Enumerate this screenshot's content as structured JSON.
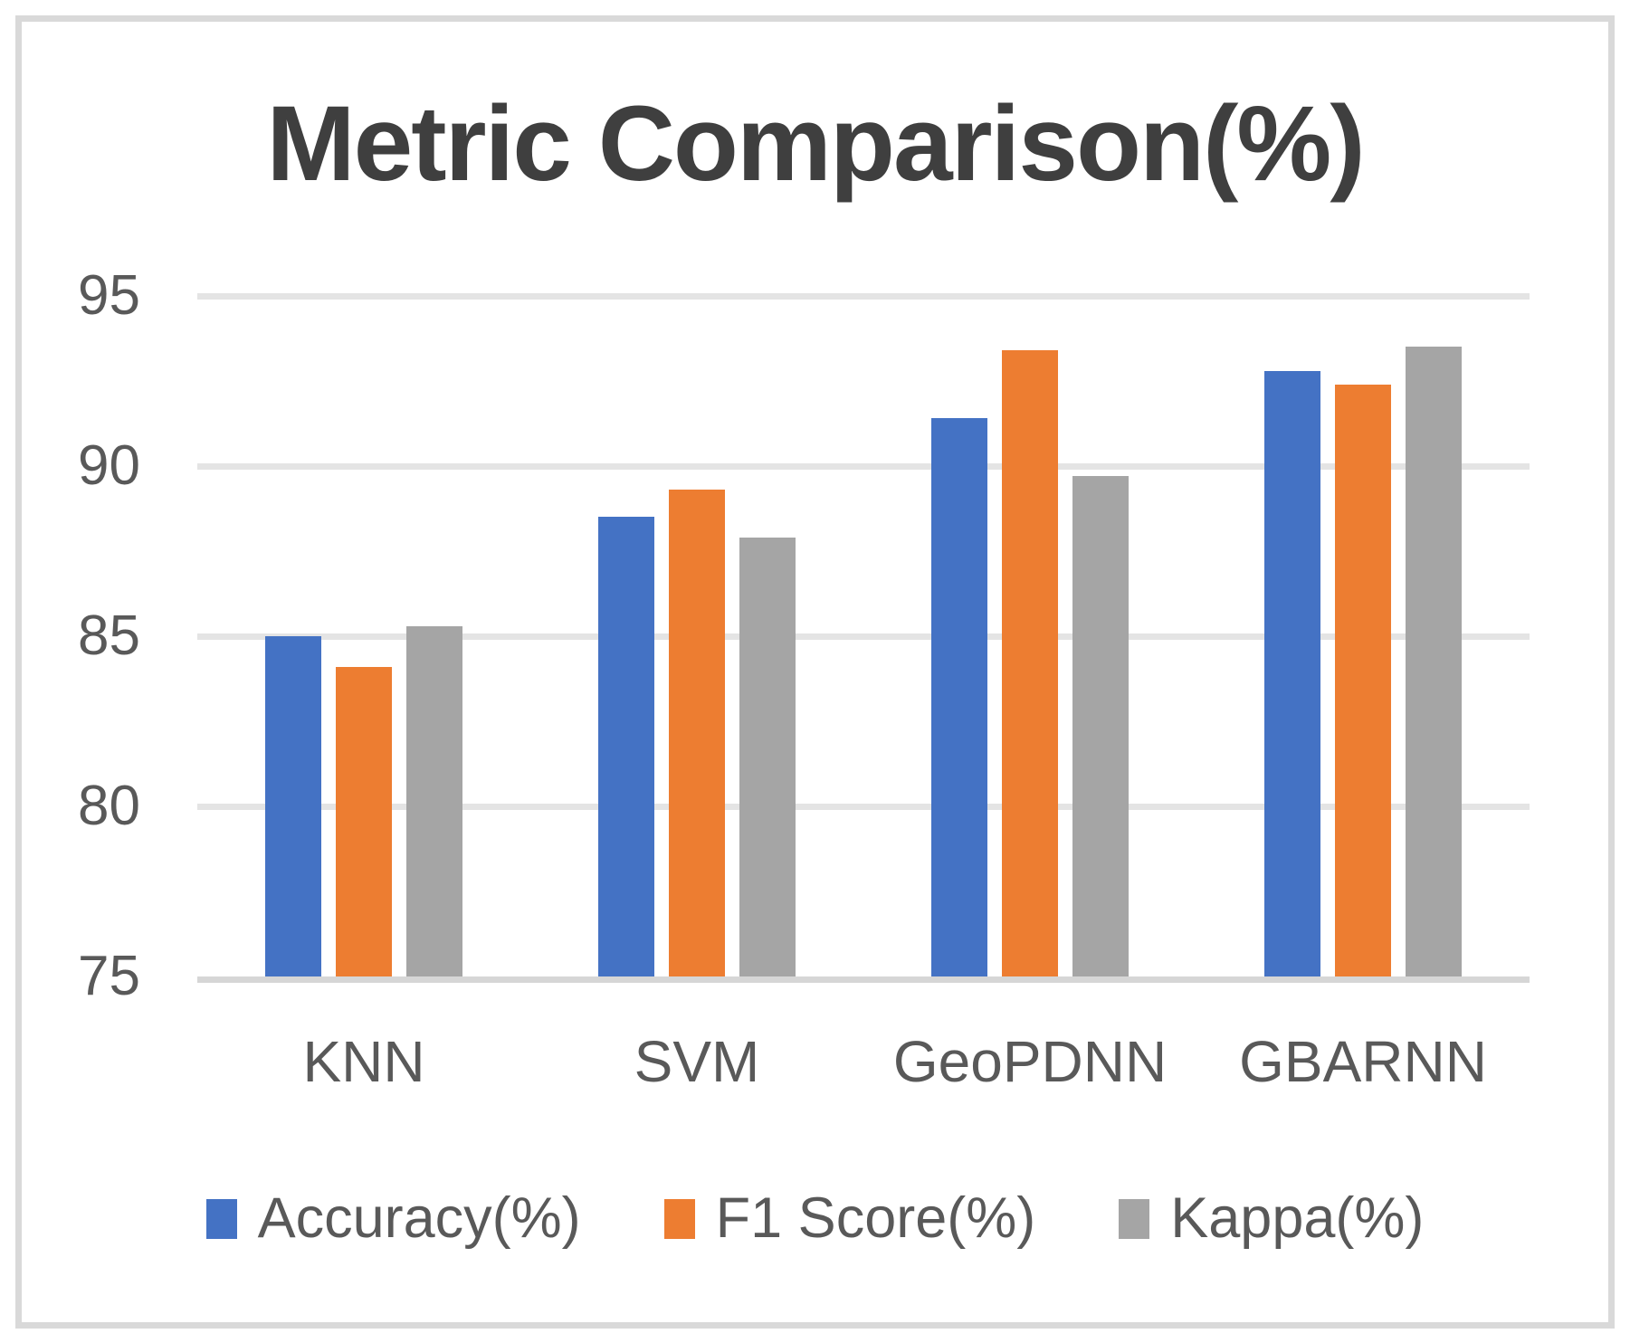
{
  "chart_data": {
    "type": "bar",
    "title": "Metric Comparison(%)",
    "categories": [
      "KNN",
      "SVM",
      "GeoPDNN",
      "GBARNN"
    ],
    "series": [
      {
        "name": "Accuracy(%)",
        "color": "#4472C4",
        "values": [
          85.0,
          88.5,
          91.4,
          92.8
        ]
      },
      {
        "name": "F1 Score(%)",
        "color": "#ED7D31",
        "values": [
          84.1,
          89.3,
          93.4,
          92.4
        ]
      },
      {
        "name": "Kappa(%)",
        "color": "#A5A5A5",
        "values": [
          85.3,
          87.9,
          89.7,
          93.5
        ]
      }
    ],
    "ylim": [
      75,
      95
    ],
    "y_ticks": [
      95,
      90,
      85,
      80,
      75
    ],
    "grid": true,
    "legend_position": "bottom"
  },
  "colors": {
    "gridline": "#e4e4e4",
    "axis_baseline": "#d6d6d6",
    "frame_border": "#d9d9d9",
    "tick_text": "#595959",
    "title_text": "#3f3f3f",
    "background": "#ffffff"
  }
}
